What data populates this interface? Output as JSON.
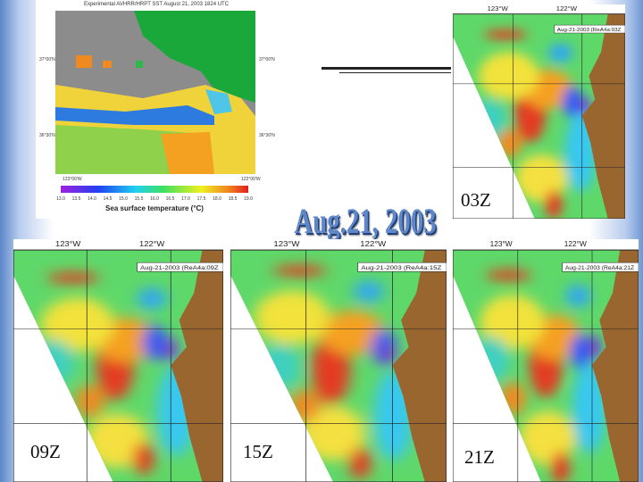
{
  "title": "Aug.21, 2003",
  "satellite_image": {
    "title": "Experimental AVHRR/HRPT SST August 21, 2003 1824 UTC",
    "lat_labels": [
      "37°00'N",
      "36°30'N"
    ],
    "lon_labels": [
      "123°00'W",
      "122°00'W"
    ],
    "colorbar_ticks": [
      "13.0",
      "13.5",
      "14.0",
      "14.5",
      "15.0",
      "15.5",
      "16.0",
      "16.5",
      "17.0",
      "17.5",
      "18.0",
      "18.5",
      "19.0"
    ],
    "colorbar_label": "Sea surface temperature (°C)"
  },
  "panels": [
    {
      "time": "03Z",
      "lon_labels": [
        "123°W",
        "122°W"
      ],
      "stamp": "Aug-21-2003 (ReA4a:03Z"
    },
    {
      "time": "09Z",
      "lon_labels": [
        "123°W",
        "122°W"
      ],
      "stamp": "Aug-21-2003 (ReA4a:09Z"
    },
    {
      "time": "15Z",
      "lon_labels": [
        "123°W",
        "122°W"
      ],
      "stamp": "Aug-21-2003 (ReA4a:15Z"
    },
    {
      "time": "21Z",
      "lon_labels": [
        "123°W",
        "122°W"
      ],
      "stamp": "Aug-21-2003 (ReA4a:21Z"
    }
  ]
}
